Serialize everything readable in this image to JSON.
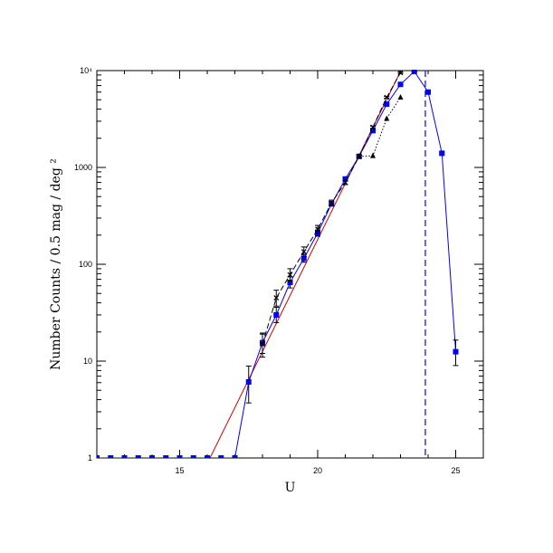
{
  "chart_data": {
    "type": "line",
    "title": "",
    "xlabel": "U",
    "ylabel": "Number Counts / 0.5 mag / deg ²",
    "xlim": [
      12,
      26
    ],
    "ylim": [
      1,
      10000
    ],
    "yscale": "log",
    "grid": false,
    "xticks": [
      15,
      20,
      25
    ],
    "xtick_labels": [
      "15",
      "20",
      "25"
    ],
    "yticks": [
      1,
      10,
      100,
      1000,
      10000
    ],
    "ytick_labels": [
      "1",
      "10",
      "100",
      "1000",
      "10⁴"
    ],
    "series": [
      {
        "color": "#0000ff",
        "style": "solid",
        "marker": "square",
        "x": [
          12.0,
          12.5,
          13.0,
          13.5,
          14.0,
          14.5,
          15.0,
          15.5,
          16.0,
          16.5,
          17.0,
          17.5,
          18.0,
          18.5,
          19.0,
          19.5,
          20.0,
          20.5,
          21.0,
          21.5,
          22.0,
          22.5,
          23.0,
          23.5,
          24.0,
          24.5,
          25.0
        ],
        "y": [
          1,
          1,
          1,
          1,
          1,
          1,
          1,
          1,
          1,
          1,
          1,
          6.1,
          15.5,
          30,
          65,
          115,
          210,
          420,
          760,
          1300,
          2400,
          4500,
          7200,
          9800,
          6000,
          1400,
          12.5
        ],
        "yerr_low": [
          0,
          0,
          0,
          0,
          0,
          0,
          0,
          0,
          0,
          0,
          0,
          2.4,
          3.5,
          5,
          8,
          10,
          15,
          20,
          25,
          35,
          50,
          70,
          80,
          100,
          80,
          35,
          3.5
        ],
        "yerr_high": [
          0,
          0,
          0,
          0,
          0,
          0,
          0,
          0,
          0,
          0,
          0,
          2.8,
          4.0,
          6,
          9,
          11,
          16,
          22,
          28,
          38,
          55,
          75,
          85,
          110,
          85,
          38,
          4.0
        ]
      },
      {
        "color": "#000000",
        "style": "dashed",
        "marker": "x",
        "x": [
          18.0,
          18.5,
          19.0,
          19.5,
          20.0,
          20.5,
          21.0,
          21.5,
          22.0,
          22.5,
          23.0
        ],
        "y": [
          15,
          45,
          78,
          135,
          230,
          430,
          700,
          1300,
          2600,
          5300,
          9500
        ],
        "yerr_low": [
          4,
          8,
          11,
          15,
          20,
          28,
          35,
          45,
          70,
          100,
          130
        ],
        "yerr_high": [
          4,
          9,
          12,
          16,
          22,
          30,
          38,
          48,
          75,
          105,
          140
        ]
      },
      {
        "color": "#000000",
        "style": "dotted",
        "marker": "triangle",
        "x": [
          21.5,
          22.0,
          22.5,
          23.0
        ],
        "y": [
          1300,
          1320,
          3200,
          5300
        ]
      }
    ],
    "fit_line": {
      "color": "#cc0000",
      "x": [
        16.1,
        23.0
      ],
      "y": [
        1,
        9800
      ]
    },
    "vline": {
      "color": "#0000ff",
      "style": "dashed",
      "x": 23.9
    }
  }
}
